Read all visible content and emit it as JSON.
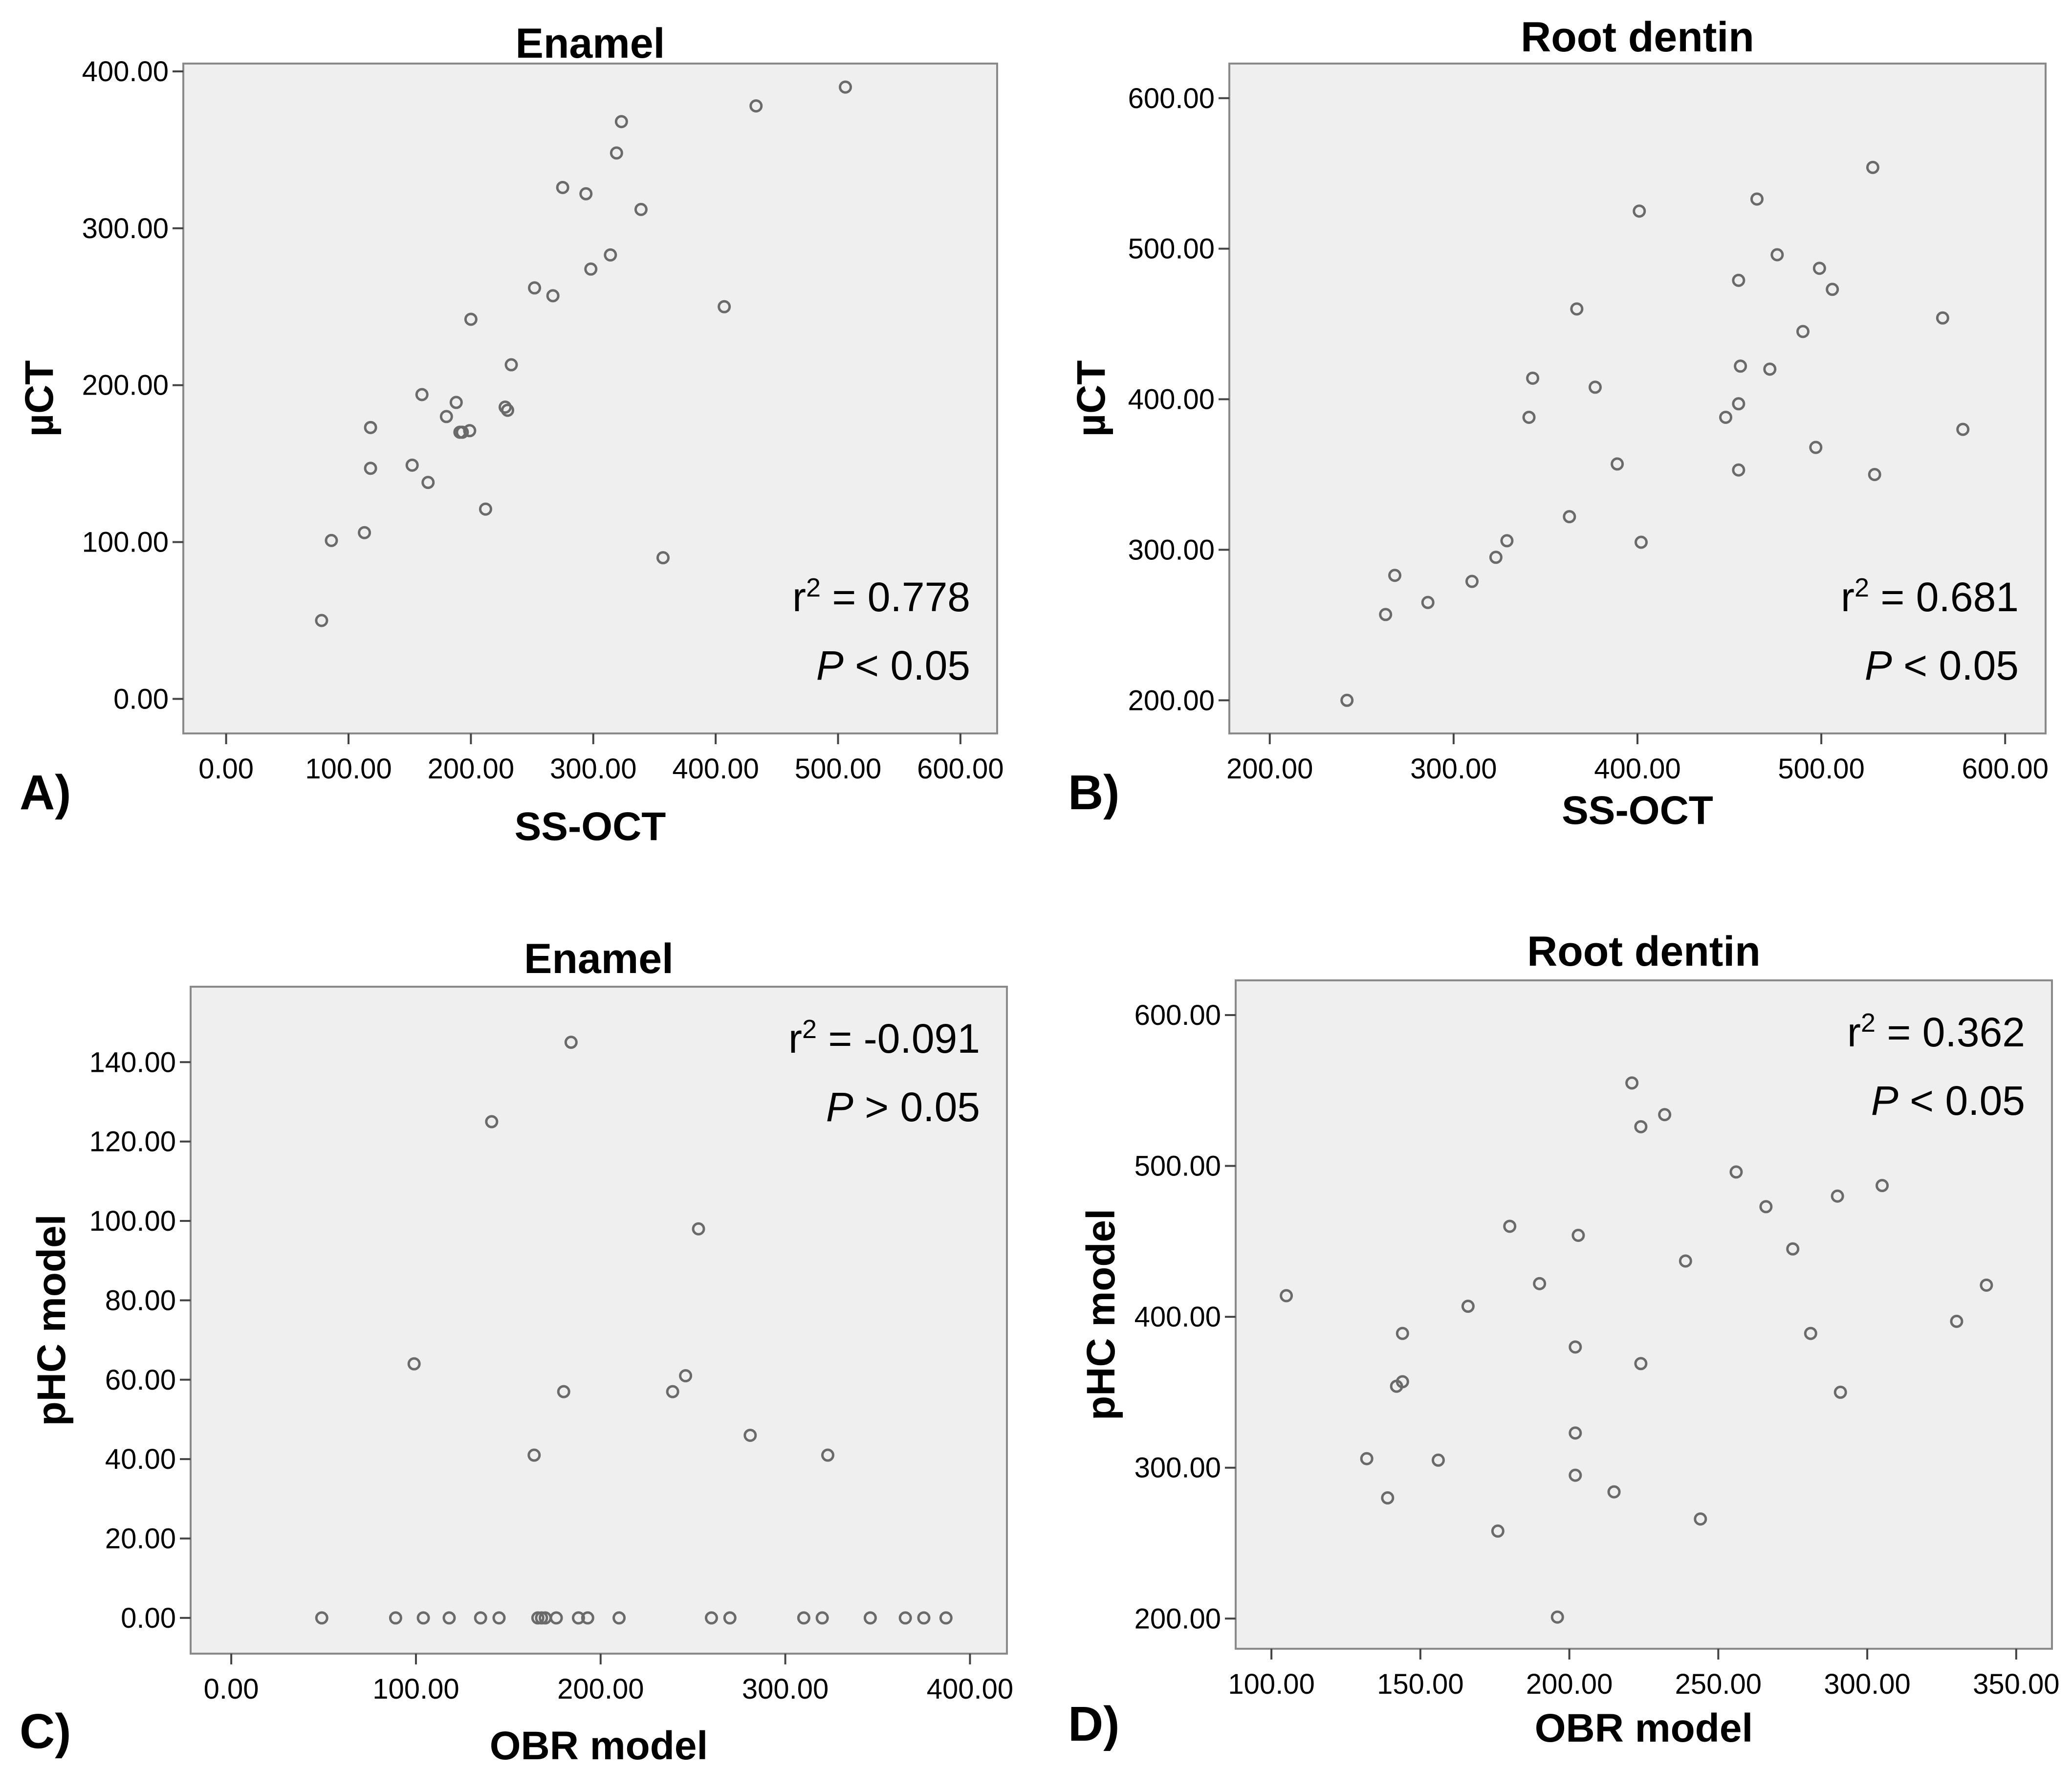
{
  "chart_data": [
    {
      "type": "scatter",
      "panel_label": "A)",
      "title": "Enamel",
      "xlabel": "SS-OCT",
      "ylabel": "µCT",
      "xlim": [
        -35,
        630
      ],
      "ylim": [
        -22,
        405
      ],
      "x_ticks": [
        0,
        100,
        200,
        300,
        400,
        500,
        600
      ],
      "x_tick_labels": [
        "0.00",
        "100.00",
        "200.00",
        "300.00",
        "400.00",
        "500.00",
        "600.00"
      ],
      "y_ticks": [
        0,
        100,
        200,
        300,
        400
      ],
      "y_tick_labels": [
        "0.00",
        "100.00",
        "200.00",
        "300.00",
        "400.00"
      ],
      "stat_line1": {
        "prefix": "r",
        "sup": "2",
        "rest": " = 0.778"
      },
      "stat_line2": {
        "p": "P",
        "rest": " < 0.05"
      },
      "stat_position": "bottom-right",
      "points": [
        [
          78,
          50
        ],
        [
          86,
          101
        ],
        [
          113,
          106
        ],
        [
          118,
          173
        ],
        [
          118,
          147
        ],
        [
          152,
          149
        ],
        [
          160,
          194
        ],
        [
          165,
          138
        ],
        [
          180,
          180
        ],
        [
          188,
          189
        ],
        [
          191,
          170
        ],
        [
          193,
          170
        ],
        [
          199,
          171
        ],
        [
          200,
          242
        ],
        [
          212,
          121
        ],
        [
          228,
          186
        ],
        [
          230,
          184
        ],
        [
          233,
          213
        ],
        [
          252,
          262
        ],
        [
          267,
          257
        ],
        [
          275,
          326
        ],
        [
          294,
          322
        ],
        [
          298,
          274
        ],
        [
          314,
          283
        ],
        [
          319,
          348
        ],
        [
          323,
          368
        ],
        [
          339,
          312
        ],
        [
          357,
          90
        ],
        [
          407,
          250
        ],
        [
          433,
          378
        ],
        [
          506,
          390
        ]
      ]
    },
    {
      "type": "scatter",
      "panel_label": "B)",
      "title": "Root dentin",
      "xlabel": "SS-OCT",
      "ylabel": "µCT",
      "xlim": [
        178,
        622
      ],
      "ylim": [
        178,
        623
      ],
      "x_ticks": [
        200,
        300,
        400,
        500,
        600
      ],
      "x_tick_labels": [
        "200.00",
        "300.00",
        "400.00",
        "500.00",
        "600.00"
      ],
      "y_ticks": [
        200,
        300,
        400,
        500,
        600
      ],
      "y_tick_labels": [
        "200.00",
        "300.00",
        "400.00",
        "500.00",
        "600.00"
      ],
      "stat_line1": {
        "prefix": "r",
        "sup": "2",
        "rest": " = 0.681"
      },
      "stat_line2": {
        "p": "P",
        "rest": " < 0.05"
      },
      "stat_position": "bottom-right",
      "points": [
        [
          242,
          200
        ],
        [
          263,
          257
        ],
        [
          268,
          283
        ],
        [
          286,
          265
        ],
        [
          310,
          279
        ],
        [
          323,
          295
        ],
        [
          329,
          306
        ],
        [
          341,
          388
        ],
        [
          343,
          414
        ],
        [
          363,
          322
        ],
        [
          367,
          460
        ],
        [
          377,
          408
        ],
        [
          389,
          357
        ],
        [
          401,
          525
        ],
        [
          402,
          305
        ],
        [
          448,
          388
        ],
        [
          455,
          479
        ],
        [
          455,
          397
        ],
        [
          456,
          422
        ],
        [
          455,
          353
        ],
        [
          465,
          533
        ],
        [
          472,
          420
        ],
        [
          476,
          496
        ],
        [
          497,
          368
        ],
        [
          499,
          487
        ],
        [
          506,
          473
        ],
        [
          490,
          445
        ],
        [
          528,
          554
        ],
        [
          529,
          350
        ],
        [
          566,
          454
        ],
        [
          577,
          380
        ]
      ]
    },
    {
      "type": "scatter",
      "panel_label": "C)",
      "title": "Enamel",
      "xlabel": "OBR model",
      "ylabel": "pHC model",
      "xlim": [
        -22,
        420
      ],
      "ylim": [
        -9,
        159
      ],
      "x_ticks": [
        0,
        100,
        200,
        300,
        400
      ],
      "x_tick_labels": [
        "0.00",
        "100.00",
        "200.00",
        "300.00",
        "400.00"
      ],
      "y_ticks": [
        0,
        20,
        40,
        60,
        80,
        100,
        120,
        140
      ],
      "y_tick_labels": [
        "0.00",
        "20.00",
        "40.00",
        "60.00",
        "80.00",
        "100.00",
        "120.00",
        "140.00"
      ],
      "stat_line1": {
        "prefix": "r",
        "sup": "2",
        "rest": " = -0.091"
      },
      "stat_line2": {
        "p": "P",
        "rest": " > 0.05"
      },
      "stat_position": "top-right",
      "points": [
        [
          49,
          0
        ],
        [
          89,
          0
        ],
        [
          99,
          64
        ],
        [
          104,
          0
        ],
        [
          118,
          0
        ],
        [
          135,
          0
        ],
        [
          141,
          125
        ],
        [
          145,
          0
        ],
        [
          164,
          41
        ],
        [
          166,
          0
        ],
        [
          168,
          0
        ],
        [
          170,
          0
        ],
        [
          176,
          0
        ],
        [
          180,
          57
        ],
        [
          184,
          145
        ],
        [
          188,
          0
        ],
        [
          193,
          0
        ],
        [
          210,
          0
        ],
        [
          239,
          57
        ],
        [
          246,
          61
        ],
        [
          253,
          98
        ],
        [
          260,
          0
        ],
        [
          270,
          0
        ],
        [
          281,
          46
        ],
        [
          310,
          0
        ],
        [
          320,
          0
        ],
        [
          323,
          41
        ],
        [
          346,
          0
        ],
        [
          365,
          0
        ],
        [
          375,
          0
        ],
        [
          387,
          0
        ]
      ]
    },
    {
      "type": "scatter",
      "panel_label": "D)",
      "title": "Root dentin",
      "xlabel": "OBR model",
      "ylabel": "pHC model",
      "xlim": [
        88,
        362
      ],
      "ylim": [
        180,
        623
      ],
      "x_ticks": [
        100,
        150,
        200,
        250,
        300,
        350
      ],
      "x_tick_labels": [
        "100.00",
        "150.00",
        "200.00",
        "250.00",
        "300.00",
        "350.00"
      ],
      "y_ticks": [
        200,
        300,
        400,
        500,
        600
      ],
      "y_tick_labels": [
        "200.00",
        "300.00",
        "400.00",
        "500.00",
        "600.00"
      ],
      "stat_line1": {
        "prefix": "r",
        "sup": "2",
        "rest": " = 0.362"
      },
      "stat_line2": {
        "p": "P",
        "rest": " < 0.05"
      },
      "stat_position": "top-right",
      "points": [
        [
          105,
          414
        ],
        [
          132,
          306
        ],
        [
          139,
          280
        ],
        [
          142,
          354
        ],
        [
          144,
          357
        ],
        [
          144,
          389
        ],
        [
          156,
          305
        ],
        [
          166,
          407
        ],
        [
          176,
          258
        ],
        [
          180,
          460
        ],
        [
          190,
          422
        ],
        [
          196,
          201
        ],
        [
          202,
          380
        ],
        [
          202,
          295
        ],
        [
          202,
          323
        ],
        [
          203,
          454
        ],
        [
          215,
          284
        ],
        [
          221,
          555
        ],
        [
          224,
          526
        ],
        [
          224,
          369
        ],
        [
          232,
          534
        ],
        [
          239,
          437
        ],
        [
          244,
          266
        ],
        [
          256,
          496
        ],
        [
          266,
          473
        ],
        [
          275,
          445
        ],
        [
          281,
          389
        ],
        [
          290,
          480
        ],
        [
          291,
          350
        ],
        [
          305,
          487
        ],
        [
          330,
          397
        ],
        [
          340,
          421
        ]
      ]
    }
  ]
}
